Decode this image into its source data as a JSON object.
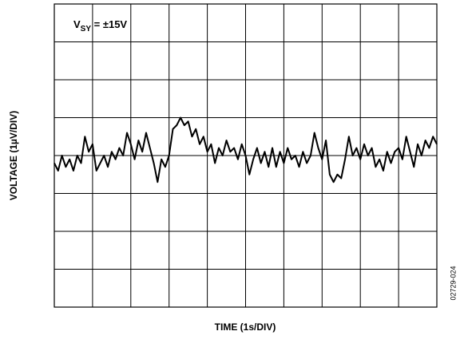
{
  "chart_data": {
    "type": "line",
    "annotation": [
      "V",
      "SY",
      " = ±15V"
    ],
    "ylabel": "VOLTAGE (1µV/DIV)",
    "xlabel": "TIME (1s/DIV)",
    "figure_id": "02729-024",
    "xlim": [
      0,
      10
    ],
    "ylim": [
      -4,
      4
    ],
    "xticks": [
      0,
      1,
      2,
      3,
      4,
      5,
      6,
      7,
      8,
      9,
      10
    ],
    "yticks": [
      -4,
      -3,
      -2,
      -1,
      0,
      1,
      2,
      3,
      4
    ],
    "grid": true,
    "x": [
      0,
      0.1,
      0.2,
      0.3,
      0.4,
      0.5,
      0.6,
      0.7,
      0.8,
      0.9,
      1,
      1.1,
      1.2,
      1.3,
      1.4,
      1.5,
      1.6,
      1.7,
      1.8,
      1.9,
      2,
      2.1,
      2.2,
      2.3,
      2.4,
      2.5,
      2.6,
      2.7,
      2.8,
      2.9,
      3,
      3.1,
      3.2,
      3.3,
      3.4,
      3.5,
      3.6,
      3.7,
      3.8,
      3.9,
      4,
      4.1,
      4.2,
      4.3,
      4.4,
      4.5,
      4.6,
      4.7,
      4.8,
      4.9,
      5,
      5.1,
      5.2,
      5.3,
      5.4,
      5.5,
      5.6,
      5.7,
      5.8,
      5.9,
      6,
      6.1,
      6.2,
      6.3,
      6.4,
      6.5,
      6.6,
      6.7,
      6.8,
      6.9,
      7,
      7.1,
      7.2,
      7.3,
      7.4,
      7.5,
      7.6,
      7.7,
      7.8,
      7.9,
      8,
      8.1,
      8.2,
      8.3,
      8.4,
      8.5,
      8.6,
      8.7,
      8.8,
      8.9,
      9,
      9.1,
      9.2,
      9.3,
      9.4,
      9.5,
      9.6,
      9.7,
      9.8,
      9.9,
      10
    ],
    "series": [
      {
        "color": "#000000",
        "values": [
          -0.2,
          -0.4,
          0.0,
          -0.3,
          -0.1,
          -0.4,
          0.0,
          -0.2,
          0.5,
          0.1,
          0.3,
          -0.4,
          -0.2,
          0.0,
          -0.3,
          0.1,
          -0.1,
          0.2,
          0.0,
          0.6,
          0.3,
          -0.1,
          0.4,
          0.1,
          0.6,
          0.2,
          -0.2,
          -0.7,
          -0.1,
          -0.3,
          0.0,
          0.7,
          0.8,
          1.0,
          0.8,
          0.9,
          0.5,
          0.7,
          0.3,
          0.5,
          0.1,
          0.3,
          -0.2,
          0.2,
          0.0,
          0.4,
          0.1,
          0.2,
          -0.1,
          0.3,
          0.0,
          -0.5,
          -0.1,
          0.2,
          -0.2,
          0.1,
          -0.3,
          0.2,
          -0.3,
          0.1,
          -0.2,
          0.2,
          -0.1,
          0.0,
          -0.3,
          0.1,
          -0.2,
          0.0,
          0.6,
          0.2,
          -0.1,
          0.4,
          -0.5,
          -0.7,
          -0.5,
          -0.6,
          -0.1,
          0.5,
          0.0,
          0.2,
          -0.1,
          0.3,
          0.0,
          0.2,
          -0.3,
          -0.1,
          -0.4,
          0.1,
          -0.2,
          0.1,
          0.2,
          -0.1,
          0.5,
          0.1,
          -0.3,
          0.3,
          0.0,
          0.4,
          0.2,
          0.5,
          0.3
        ]
      }
    ]
  }
}
